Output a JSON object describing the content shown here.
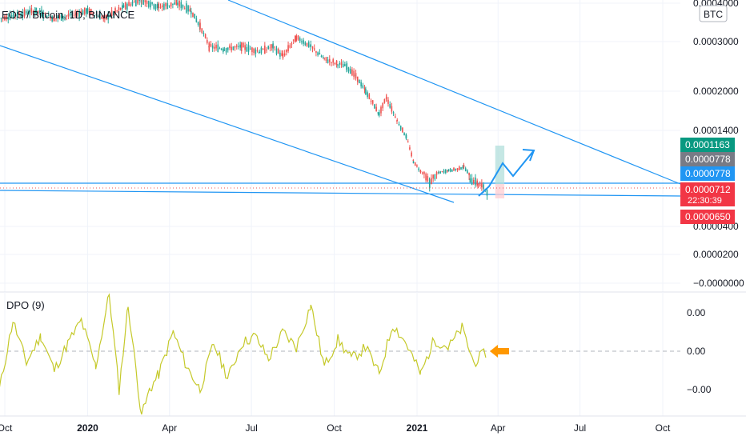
{
  "header": {
    "title": "EOS / Bitcoin, 1D, BINANCE",
    "currency_badge": "BTC"
  },
  "price_axis": {
    "ticks": [
      {
        "value": 0.0004,
        "label": "0.0004000"
      },
      {
        "value": 0.0003,
        "label": "0.0003000"
      },
      {
        "value": 0.0002,
        "label": "0.0002000"
      },
      {
        "value": 0.00014,
        "label": "0.0001400"
      },
      {
        "value": 4e-05,
        "label": "0.0000400"
      },
      {
        "value": 2e-05,
        "label": "0.0000200"
      },
      {
        "value": 0.0,
        "label": "−0.0000000"
      }
    ]
  },
  "price_labels": [
    {
      "name": "target-price-label",
      "text": "0.0001163",
      "value": 0.0001163,
      "color": "#089981"
    },
    {
      "name": "entry-price-label-gray",
      "text": "0.0000778",
      "value": 7.78e-05,
      "color": "#787b86"
    },
    {
      "name": "entry-price-label-blue",
      "text": "0.0000778",
      "value": 7.78e-05,
      "color": "#2196f3"
    },
    {
      "name": "last-price-label",
      "text": "0.0000712",
      "sub": "22:30:39",
      "value": 7.12e-05,
      "color": "#f23645"
    },
    {
      "name": "stop-price-label",
      "text": "0.0000650",
      "value": 6.5e-05,
      "color": "#f23645"
    }
  ],
  "dpo": {
    "title": "DPO (9)",
    "ticks": [
      {
        "value": 1e-05,
        "label": "0.00"
      },
      {
        "value": 0.0,
        "label": "0.00"
      },
      {
        "value": -1e-05,
        "label": "−0.00"
      }
    ],
    "line_color": "#c5c92a",
    "arrow_color": "#ff9800"
  },
  "time_axis": {
    "labels": [
      {
        "label": "Oct",
        "date": "2019-10-01",
        "bold": false
      },
      {
        "label": "2020",
        "date": "2020-01-01",
        "bold": true
      },
      {
        "label": "Apr",
        "date": "2020-04-01",
        "bold": false
      },
      {
        "label": "Jul",
        "date": "2020-07-01",
        "bold": false
      },
      {
        "label": "Oct",
        "date": "2020-10-01",
        "bold": false
      },
      {
        "label": "2021",
        "date": "2021-01-01",
        "bold": true
      },
      {
        "label": "Apr",
        "date": "2021-04-01",
        "bold": false
      },
      {
        "label": "Jul",
        "date": "2021-07-01",
        "bold": false
      },
      {
        "label": "Oct",
        "date": "2021-10-01",
        "bold": false
      }
    ]
  },
  "colors": {
    "up_candle": "#26a69a",
    "down_candle": "#ef5350",
    "trendline": "#2196f3",
    "grid": "#f0f3fa",
    "axis_text": "#131722",
    "position_profit": "#b2dfdb",
    "position_loss": "#ffcdd2"
  },
  "chart_data": [
    {
      "type": "candlestick",
      "title": "EOS / Bitcoin, 1D, BINANCE",
      "y_scale": "log",
      "y_unit": "BTC",
      "ylim": [
        0.0,
        0.00041
      ],
      "x_range": [
        "2019-09-25",
        "2021-11-05"
      ],
      "grid": true,
      "close_series": [
        {
          "date": "2019-09-25",
          "close": 0.00036
        },
        {
          "date": "2019-10-15",
          "close": 0.00037
        },
        {
          "date": "2019-11-05",
          "close": 0.00038
        },
        {
          "date": "2019-11-25",
          "close": 0.00036
        },
        {
          "date": "2019-12-15",
          "close": 0.00037
        },
        {
          "date": "2020-01-01",
          "close": 0.00038
        },
        {
          "date": "2020-01-20",
          "close": 0.00036
        },
        {
          "date": "2020-02-10",
          "close": 0.00039
        },
        {
          "date": "2020-03-01",
          "close": 0.00041
        },
        {
          "date": "2020-03-20",
          "close": 0.00039
        },
        {
          "date": "2020-04-10",
          "close": 0.0004
        },
        {
          "date": "2020-04-25",
          "close": 0.00038
        },
        {
          "date": "2020-05-05",
          "close": 0.00034
        },
        {
          "date": "2020-05-15",
          "close": 0.00029
        },
        {
          "date": "2020-06-01",
          "close": 0.000285
        },
        {
          "date": "2020-06-20",
          "close": 0.00029
        },
        {
          "date": "2020-07-10",
          "close": 0.00028
        },
        {
          "date": "2020-07-25",
          "close": 0.00029
        },
        {
          "date": "2020-08-05",
          "close": 0.00027
        },
        {
          "date": "2020-08-20",
          "close": 0.00031
        },
        {
          "date": "2020-09-05",
          "close": 0.00029
        },
        {
          "date": "2020-09-20",
          "close": 0.000265
        },
        {
          "date": "2020-10-05",
          "close": 0.000255
        },
        {
          "date": "2020-10-15",
          "close": 0.00025
        },
        {
          "date": "2020-10-25",
          "close": 0.00023
        },
        {
          "date": "2020-11-05",
          "close": 0.0002
        },
        {
          "date": "2020-11-20",
          "close": 0.000165
        },
        {
          "date": "2020-11-28",
          "close": 0.00019
        },
        {
          "date": "2020-12-10",
          "close": 0.000155
        },
        {
          "date": "2020-12-20",
          "close": 0.00013
        },
        {
          "date": "2020-12-28",
          "close": 9.5e-05
        },
        {
          "date": "2021-01-05",
          "close": 8.2e-05
        },
        {
          "date": "2021-01-15",
          "close": 7.4e-05
        },
        {
          "date": "2021-01-25",
          "close": 8e-05
        },
        {
          "date": "2021-02-05",
          "close": 8.3e-05
        },
        {
          "date": "2021-02-15",
          "close": 8.5e-05
        },
        {
          "date": "2021-02-22",
          "close": 8.8e-05
        },
        {
          "date": "2021-03-01",
          "close": 7.6e-05
        },
        {
          "date": "2021-03-10",
          "close": 7.4e-05
        },
        {
          "date": "2021-03-20",
          "close": 7.12e-05
        }
      ],
      "markers": [
        {
          "label": "last price",
          "value": 7.12e-05
        },
        {
          "label": "entry",
          "value": 7.78e-05
        },
        {
          "label": "target",
          "value": 0.0001163
        },
        {
          "label": "stop",
          "value": 6.5e-05
        }
      ]
    },
    {
      "type": "line",
      "title": "DPO (9)",
      "ylim": [
        -1.7e-05,
        1.5e-05
      ],
      "grid": true,
      "zero_line": true,
      "series": [
        {
          "x": [
            "2019-09-25",
            "2019-10-10",
            "2019-10-25",
            "2019-11-10",
            "2019-11-25",
            "2019-12-10",
            "2019-12-25",
            "2020-01-10",
            "2020-01-25",
            "2020-02-05",
            "2020-02-15",
            "2020-03-01",
            "2020-03-10",
            "2020-03-20",
            "2020-04-05",
            "2020-04-20",
            "2020-05-05",
            "2020-05-20",
            "2020-06-05",
            "2020-06-20",
            "2020-07-05",
            "2020-07-20",
            "2020-08-05",
            "2020-08-20",
            "2020-09-05",
            "2020-09-20",
            "2020-10-05",
            "2020-10-20",
            "2020-11-05",
            "2020-11-20",
            "2020-12-05",
            "2020-12-20",
            "2021-01-05",
            "2021-01-20",
            "2021-02-05",
            "2021-02-20",
            "2021-03-05",
            "2021-03-20"
          ],
          "y": [
            -1e-05,
            8e-06,
            -3e-06,
            4e-06,
            -5e-06,
            2e-06,
            8e-06,
            -4e-06,
            1.5e-05,
            -1e-05,
            1.2e-05,
            -1.7e-05,
            -1e-05,
            -6e-06,
            5e-06,
            -4e-06,
            -1e-05,
            2e-06,
            -7e-06,
            2e-06,
            4e-06,
            -2e-06,
            5e-06,
            1e-06,
            1.2e-05,
            -4e-06,
            3e-06,
            -2e-06,
            1e-06,
            -6e-06,
            7e-06,
            2e-06,
            -6e-06,
            3e-06,
            1e-06,
            6e-06,
            -3e-06,
            0.0
          ]
        }
      ]
    }
  ]
}
